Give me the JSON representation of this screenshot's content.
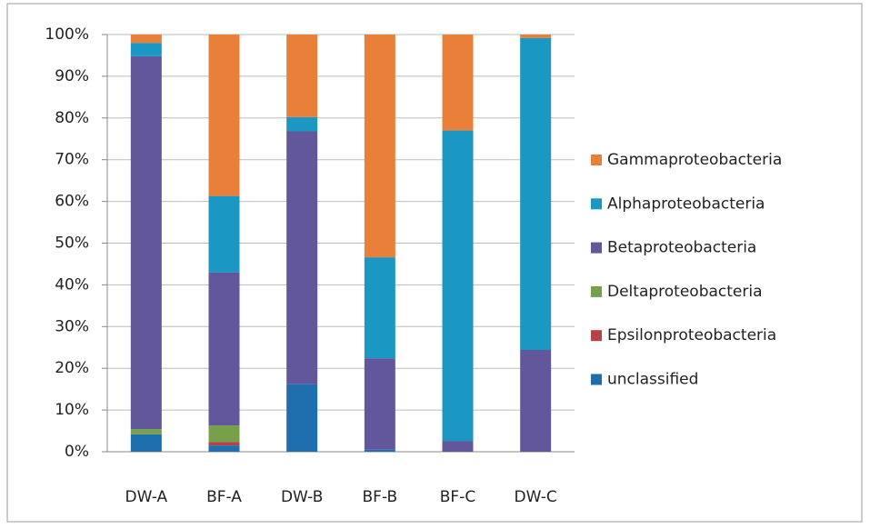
{
  "chart_data": {
    "type": "stacked_bar",
    "categories": [
      "DW-A",
      "BF-A",
      "DW-B",
      "BF-B",
      "BF-C",
      "DW-C"
    ],
    "series": [
      {
        "name": "unclassified",
        "color": "#1f6fae",
        "values": [
          4.2,
          1.5,
          16.2,
          0.5,
          0,
          0
        ]
      },
      {
        "name": "Epsilonproteobacteria",
        "color": "#b5424a",
        "values": [
          0,
          0.8,
          0,
          0,
          0,
          0
        ]
      },
      {
        "name": "Deltaproteobacteria",
        "color": "#77a04b",
        "values": [
          1.2,
          4.0,
          0,
          0,
          0,
          0
        ]
      },
      {
        "name": "Betaproteobacteria",
        "color": "#63579c",
        "values": [
          89.4,
          36.7,
          60.6,
          21.9,
          2.6,
          24.4
        ]
      },
      {
        "name": "Alphaproteobacteria",
        "color": "#1a97c2",
        "values": [
          3.2,
          18.3,
          3.4,
          24.2,
          74.4,
          74.8
        ]
      },
      {
        "name": "Gammaproteobacteria",
        "color": "#e8803a",
        "values": [
          2.0,
          38.7,
          19.8,
          53.4,
          23.0,
          0.8
        ]
      }
    ],
    "ylim": [
      0,
      100
    ],
    "yticks": [
      {
        "value": 0,
        "label": "0%"
      },
      {
        "value": 10,
        "label": "10%"
      },
      {
        "value": 20,
        "label": "20%"
      },
      {
        "value": 30,
        "label": "30%"
      },
      {
        "value": 40,
        "label": "40%"
      },
      {
        "value": 50,
        "label": "50%"
      },
      {
        "value": 60,
        "label": "60%"
      },
      {
        "value": 70,
        "label": "70%"
      },
      {
        "value": 80,
        "label": "80%"
      },
      {
        "value": 90,
        "label": "90%"
      },
      {
        "value": 100,
        "label": "100%"
      }
    ],
    "grid": true,
    "legend": "right"
  }
}
